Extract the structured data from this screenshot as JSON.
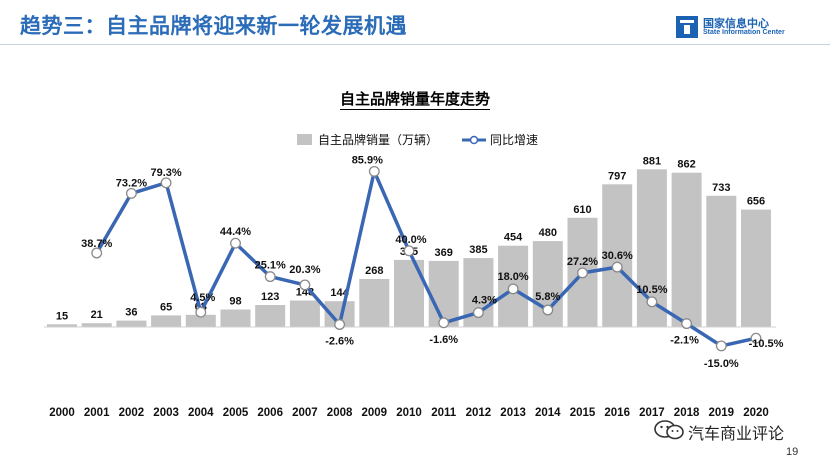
{
  "header": {
    "title": "趋势三：自主品牌将迎来新一轮发展机遇",
    "logo_cn": "国家信息中心",
    "logo_en": "State Information Center"
  },
  "footer": {
    "watermark": "汽车商业评论",
    "page_number": "19"
  },
  "colors": {
    "accent": "#2b6cb8",
    "bar": "#c3c3c3",
    "line": "#3a67b3"
  },
  "chart_data": {
    "type": "bar",
    "title": "自主品牌销量年度走势",
    "legend_position": "top",
    "grid": false,
    "categories": [
      "2000",
      "2001",
      "2002",
      "2003",
      "2004",
      "2005",
      "2006",
      "2007",
      "2008",
      "2009",
      "2010",
      "2011",
      "2012",
      "2013",
      "2014",
      "2015",
      "2016",
      "2017",
      "2018",
      "2019",
      "2020"
    ],
    "series": [
      {
        "name": "自主品牌销量（万辆）",
        "type": "bar",
        "axis": "left",
        "values": [
          15,
          21,
          36,
          65,
          68,
          98,
          123,
          148,
          144,
          268,
          375,
          369,
          385,
          454,
          480,
          610,
          797,
          881,
          862,
          733,
          656
        ],
        "labels": [
          "15",
          "21",
          "36",
          "65",
          "68",
          "98",
          "123",
          "148",
          "144",
          "268",
          "375",
          "369",
          "385",
          "454",
          "480",
          "610",
          "797",
          "881",
          "862",
          "733",
          "656"
        ]
      },
      {
        "name": "同比增速",
        "type": "line",
        "axis": "right",
        "values": [
          null,
          38.7,
          73.2,
          79.3,
          4.5,
          44.4,
          25.1,
          20.3,
          -2.6,
          85.9,
          40.0,
          -1.6,
          4.3,
          18.0,
          5.8,
          27.2,
          30.6,
          10.5,
          -2.1,
          -15.0,
          -10.5
        ],
        "labels": [
          null,
          "38.7%",
          "73.2%",
          "79.3%",
          "4.5%",
          "44.4%",
          "25.1%",
          "20.3%",
          "-2.6%",
          "85.9%",
          "40.0%",
          "-1.6%",
          "4.3%",
          "18.0%",
          "5.8%",
          "27.2%",
          "30.6%",
          "10.5%",
          "-2.1%",
          "-15.0%",
          "-10.5%"
        ]
      }
    ]
  }
}
